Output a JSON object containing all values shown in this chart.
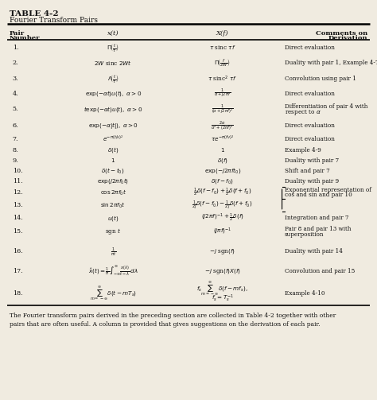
{
  "title": "TABLE 4-2",
  "subtitle": "Fourier Transform Pairs",
  "bg_color": "#f0ebe0",
  "text_color": "#111111",
  "col_headers_line1": [
    "Pair",
    "x(t)",
    "X(f)",
    "Comments on"
  ],
  "col_headers_line2": [
    "Number",
    "",
    "",
    "Derivation"
  ],
  "rows": [
    {
      "num": "1.",
      "xt": "$\\Pi\\!\\left(\\frac{t}{\\tau}\\right)$",
      "Xf": "$\\tau$ sinc $\\tau f$",
      "comment1": "Direct evaluation",
      "comment2": ""
    },
    {
      "num": "2.",
      "xt": "$2W$ sinc $2Wt$",
      "Xf": "$\\Pi\\!\\left(\\frac{f}{2W}\\right)$",
      "comment1": "Duality with pair 1, Example 4-7",
      "comment2": ""
    },
    {
      "num": "3.",
      "xt": "$\\Lambda\\!\\left(\\frac{t}{\\tau}\\right)$",
      "Xf": "$\\tau$ sinc$^2$ $\\tau f$",
      "comment1": "Convolution using pair 1",
      "comment2": ""
    },
    {
      "num": "4.",
      "xt": "$\\exp(-\\alpha t)u(t),\\; \\alpha > 0$",
      "Xf": "$\\frac{1}{\\alpha + j2\\pi f}$",
      "comment1": "Direct evaluation",
      "comment2": ""
    },
    {
      "num": "5.",
      "xt": "$t\\exp(-\\alpha t)u(t),\\; \\alpha > 0$",
      "Xf": "$\\frac{1}{(\\alpha + j2\\pi f)^2}$",
      "comment1": "Differentiation of pair 4 with",
      "comment2": "respect to $\\alpha$"
    },
    {
      "num": "6.",
      "xt": "$\\exp(-\\alpha|t|),\\; \\alpha > 0$",
      "Xf": "$\\frac{2\\alpha}{\\alpha^2 + (2\\pi f)^2}$",
      "comment1": "Direct evaluation",
      "comment2": ""
    },
    {
      "num": "7.",
      "xt": "$e^{-\\pi(t/\\nu)^2}$",
      "Xf": "$\\tau e^{-\\pi(f\\nu)^2}$",
      "comment1": "Direct evaluation",
      "comment2": ""
    },
    {
      "num": "8.",
      "xt": "$\\delta(t)$",
      "Xf": "$1$",
      "comment1": "Example 4-9",
      "comment2": ""
    },
    {
      "num": "9.",
      "xt": "$1$",
      "Xf": "$\\delta(f)$",
      "comment1": "Duality with pair 7",
      "comment2": ""
    },
    {
      "num": "10.",
      "xt": "$\\delta(t - t_0)$",
      "Xf": "$\\exp(-j2\\pi f t_0)$",
      "comment1": "Shift and pair 7",
      "comment2": ""
    },
    {
      "num": "11.",
      "xt": "$\\exp(j2\\pi f_0 t)$",
      "Xf": "$\\delta(f - f_0)$",
      "comment1": "Duality with pair 9",
      "comment2": ""
    },
    {
      "num": "12.",
      "xt": "$\\cos 2\\pi f_0 t$",
      "Xf": "$\\frac{1}{2}\\delta(f-f_0) + \\frac{1}{2}\\delta(f+f_0)$",
      "comment1": "Exponential representation of",
      "comment2": "cos and sin and pair 10"
    },
    {
      "num": "13.",
      "xt": "$\\sin 2\\pi f_0 t$",
      "Xf": "$\\frac{1}{2j}\\delta(f-f_0) - \\frac{1}{2j}\\delta(f+f_0)$",
      "comment1": "",
      "comment2": ""
    },
    {
      "num": "14.",
      "xt": "$u(t)$",
      "Xf": "$(j2\\pi f)^{-1} + \\frac{1}{2}\\delta(f)$",
      "comment1": "Integration and pair 7",
      "comment2": ""
    },
    {
      "num": "15.",
      "xt": "sgn $t$",
      "Xf": "$(j\\pi f)^{-1}$",
      "comment1": "Pair 8 and pair 13 with",
      "comment2": "superposition"
    },
    {
      "num": "16.",
      "xt": "$\\frac{1}{\\pi t}$",
      "Xf": "$-j$ sgn$(f)$",
      "comment1": "Duality with pair 14",
      "comment2": ""
    },
    {
      "num": "17.",
      "xt": "$\\hat{x}(t) = \\frac{1}{\\pi}\\int_{-\\infty}^{\\infty}\\frac{x(\\lambda)}{t-\\lambda}\\,d\\lambda$",
      "Xf": "$-j$ sgn$(f)X(f)$",
      "comment1": "Convolution and pair 15",
      "comment2": ""
    },
    {
      "num": "18.",
      "xt": "$\\sum_{m=-\\infty}^{\\infty}\\delta(t - mT_s)$",
      "Xf_line1": "$f_s\\sum_{m=-\\infty}^{\\infty}\\delta(f - mf_s),$",
      "Xf_line2": "$f_s = T_s^{-1}$",
      "Xf": "$f_s\\sum_{m=-\\infty}^{\\infty}\\delta(f - mf_s),$",
      "comment1": "Example 4-10",
      "comment2": ""
    }
  ],
  "footer_line1": "The Fourier transform pairs derived in the preceding section are collected in Table 4-2 together with other",
  "footer_line2": "pairs that are often useful. A column is provided that gives suggestions on the derivation of each pair."
}
